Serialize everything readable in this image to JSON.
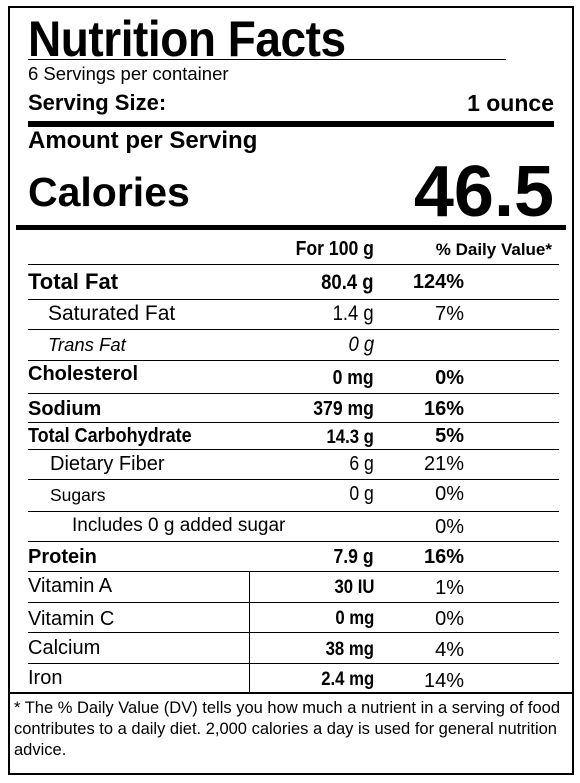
{
  "title": "Nutrition Facts",
  "servings_per_container": "6 Servings per container",
  "serving_size": {
    "label": "Serving Size:",
    "value": "1 ounce"
  },
  "amount_per_serving": "Amount per Serving",
  "calories": {
    "label": "Calories",
    "value": "46.5"
  },
  "headers": {
    "per100": "For 100 g",
    "dv": "% Daily Value*"
  },
  "rows": [
    {
      "name": "Total Fat",
      "amount": "80.4 g",
      "dv": "124%"
    },
    {
      "name": "Saturated Fat",
      "amount": "1.4 g",
      "dv": "7%"
    },
    {
      "name": "Trans Fat",
      "amount": "0 g",
      "dv": ""
    },
    {
      "name": "Cholesterol",
      "amount": "0 mg",
      "dv": "0%"
    },
    {
      "name": "Sodium",
      "amount": "379 mg",
      "dv": "16%"
    },
    {
      "name": "Total Carbohydrate",
      "amount": "14.3 g",
      "dv": "5%"
    },
    {
      "name": "Dietary Fiber",
      "amount": "6 g",
      "dv": "21%"
    },
    {
      "name": "Sugars",
      "amount": "0 g",
      "dv": "0%"
    },
    {
      "name": "Includes 0 g added sugar",
      "amount": "",
      "dv": "0%"
    },
    {
      "name": "Protein",
      "amount": "7.9 g",
      "dv": "16%"
    }
  ],
  "vitamins": [
    {
      "name": "Vitamin A",
      "amount": "30 IU",
      "dv": "1%"
    },
    {
      "name": "Vitamin C",
      "amount": "0 mg",
      "dv": "0%"
    },
    {
      "name": "Calcium",
      "amount": "38 mg",
      "dv": "4%"
    },
    {
      "name": "Iron",
      "amount": "2.4 mg",
      "dv": "14%"
    }
  ],
  "footnote": "* The % Daily Value (DV) tells you how much a nutrient in a serving of food contributes to a daily diet. 2,000 calories a day is used for general nutrition advice."
}
